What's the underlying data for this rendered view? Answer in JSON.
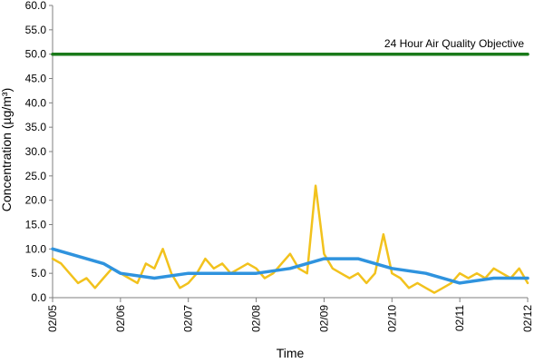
{
  "chart_data": {
    "type": "line",
    "title": "",
    "xlabel": "Time",
    "ylabel": "Concentration (µg/m³)",
    "ylim": [
      0,
      60
    ],
    "yticks": [
      "0.0",
      "5.0",
      "10.0",
      "15.0",
      "20.0",
      "25.0",
      "30.0",
      "35.0",
      "40.0",
      "45.0",
      "50.0",
      "55.0",
      "60.0"
    ],
    "xlim": [
      "02/05",
      "02/12"
    ],
    "xticks": [
      "02/05",
      "02/06",
      "02/07",
      "02/08",
      "02/09",
      "02/10",
      "02/11",
      "02/12"
    ],
    "grid": false,
    "legend": "none",
    "annotation": "24 Hour Air Quality Objective",
    "colors": {
      "hourly": "#f2c21d",
      "rolling": "#2f93de",
      "objective": "#1a7a1a",
      "axis": "#7f7f7f"
    },
    "series": [
      {
        "color": "#f2c21d",
        "x": [
          "02/05 00:00",
          "02/05 03:00",
          "02/05 06:00",
          "02/05 09:00",
          "02/05 12:00",
          "02/05 15:00",
          "02/05 18:00",
          "02/05 21:00",
          "02/06 00:00",
          "02/06 03:00",
          "02/06 06:00",
          "02/06 09:00",
          "02/06 12:00",
          "02/06 15:00",
          "02/06 18:00",
          "02/06 21:00",
          "02/07 00:00",
          "02/07 03:00",
          "02/07 06:00",
          "02/07 09:00",
          "02/07 12:00",
          "02/07 15:00",
          "02/07 18:00",
          "02/07 21:00",
          "02/08 00:00",
          "02/08 03:00",
          "02/08 06:00",
          "02/08 09:00",
          "02/08 12:00",
          "02/08 15:00",
          "02/08 18:00",
          "02/08 21:00",
          "02/09 00:00",
          "02/09 03:00",
          "02/09 06:00",
          "02/09 09:00",
          "02/09 12:00",
          "02/09 15:00",
          "02/09 18:00",
          "02/09 21:00",
          "02/10 00:00",
          "02/10 03:00",
          "02/10 06:00",
          "02/10 09:00",
          "02/10 12:00",
          "02/10 15:00",
          "02/10 18:00",
          "02/10 21:00",
          "02/11 00:00",
          "02/11 03:00",
          "02/11 06:00",
          "02/11 09:00",
          "02/11 12:00",
          "02/11 15:00",
          "02/11 18:00",
          "02/11 21:00",
          "02/12 00:00"
        ],
        "values": [
          8,
          7,
          5,
          3,
          4,
          2,
          4,
          6,
          5,
          4,
          3,
          7,
          6,
          10,
          5,
          2,
          3,
          5,
          8,
          6,
          7,
          5,
          6,
          7,
          6,
          4,
          5,
          7,
          9,
          6,
          5,
          23,
          9,
          6,
          5,
          4,
          5,
          3,
          5,
          13,
          5,
          4,
          2,
          3,
          2,
          1,
          2,
          3,
          5,
          4,
          5,
          4,
          6,
          5,
          4,
          6,
          3
        ]
      },
      {
        "color": "#2f93de",
        "x": [
          "02/05 00:00",
          "02/05 06:00",
          "02/05 12:00",
          "02/05 18:00",
          "02/06 00:00",
          "02/06 12:00",
          "02/07 00:00",
          "02/07 12:00",
          "02/08 00:00",
          "02/08 12:00",
          "02/09 00:00",
          "02/09 12:00",
          "02/10 00:00",
          "02/10 12:00",
          "02/11 00:00",
          "02/11 12:00",
          "02/12 00:00"
        ],
        "values": [
          10,
          9,
          8,
          7,
          5,
          4,
          5,
          5,
          5,
          6,
          8,
          8,
          6,
          5,
          3,
          4,
          4
        ]
      },
      {
        "color": "#1a7a1a",
        "x": [
          "02/05 00:00",
          "02/12 00:00"
        ],
        "values": [
          50,
          50
        ]
      }
    ]
  }
}
